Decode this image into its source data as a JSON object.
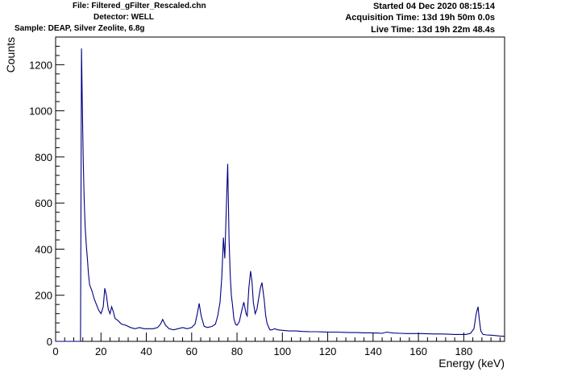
{
  "header": {
    "file": "File: Filtered_gFilter_Rescaled.chn",
    "detector": "Detector: WELL",
    "sample": "Sample: DEAP, Silver Zeolite, 6.8g",
    "started": "Started 04 Dec 2020 08:15:14",
    "acquisition": "Acquisition Time: 13d 19h 50m 0.0s",
    "live": "Live Time: 13d 19h 22m 48.4s"
  },
  "colors": {
    "line": "#000080",
    "axis": "#000000"
  },
  "chart_data": {
    "type": "line",
    "title": "",
    "xlabel": "Energy (keV)",
    "ylabel": "Counts",
    "xlim": [
      0,
      198
    ],
    "ylim": [
      0,
      1320
    ],
    "xticks": [
      0,
      20,
      40,
      60,
      80,
      100,
      120,
      140,
      160,
      180
    ],
    "xtick_labels": [
      "0",
      "20",
      "40",
      "60",
      "80",
      "100",
      "120",
      "140",
      "160",
      "180"
    ],
    "yticks": [
      0,
      200,
      400,
      600,
      800,
      1000,
      1200
    ],
    "ytick_labels": [
      "0",
      "200",
      "400",
      "600",
      "800",
      "1000",
      "1200"
    ],
    "grid": false,
    "legend": "none",
    "series": [
      {
        "x": [
          0,
          11.0,
          11.4,
          11.8,
          12.2,
          12.6,
          13.0,
          13.5,
          14.0,
          14.5,
          15.0,
          16.0,
          17.0,
          18.0,
          19.0,
          20.0,
          21.0,
          21.7,
          22.4,
          23.2,
          24.0,
          24.7,
          25.4,
          26.2,
          27.5,
          29.0,
          31.0,
          33.0,
          35.0,
          37.0,
          39.0,
          41.0,
          43.0,
          45.0,
          46.3,
          47.2,
          48.5,
          50.0,
          52.0,
          54.0,
          56.0,
          58.0,
          60.0,
          61.5,
          62.5,
          63.3,
          64.2,
          65.5,
          67.0,
          69.0,
          70.5,
          71.5,
          72.5,
          73.3,
          74.0,
          74.6,
          75.3,
          75.9,
          76.5,
          77.0,
          77.5,
          78.0,
          78.6,
          79.3,
          80.0,
          81.0,
          82.0,
          83.0,
          84.0,
          84.5,
          85.2,
          86.0,
          86.6,
          87.2,
          88.0,
          88.8,
          89.6,
          90.3,
          91.0,
          92.0,
          92.6,
          93.2,
          93.8,
          94.5,
          95.5,
          96.5,
          98.0,
          100.0,
          103.0,
          106.0,
          109.0,
          112.0,
          115.0,
          118.0,
          121.0,
          124.0,
          127.0,
          130.0,
          133.0,
          136.0,
          139.0,
          142.0,
          144.0,
          146.0,
          149.0,
          152.0,
          155.0,
          158.0,
          161.0,
          164.0,
          167.0,
          170.0,
          173.0,
          176.0,
          179.0,
          181.0,
          183.0,
          184.5,
          185.5,
          186.3,
          186.8,
          187.5,
          188.5,
          190.0,
          192.0,
          194.0,
          196.0,
          198.0
        ],
        "values": [
          0,
          0,
          1270,
          1010,
          780,
          620,
          500,
          420,
          360,
          290,
          245,
          220,
          185,
          160,
          135,
          120,
          150,
          230,
          200,
          140,
          120,
          150,
          130,
          100,
          90,
          75,
          70,
          60,
          55,
          60,
          55,
          55,
          55,
          60,
          75,
          95,
          70,
          55,
          50,
          55,
          60,
          55,
          60,
          75,
          120,
          165,
          110,
          65,
          60,
          65,
          75,
          110,
          170,
          280,
          450,
          360,
          580,
          770,
          440,
          290,
          200,
          160,
          100,
          75,
          70,
          85,
          130,
          170,
          120,
          110,
          230,
          305,
          260,
          170,
          120,
          140,
          190,
          230,
          255,
          180,
          115,
          80,
          65,
          50,
          50,
          55,
          50,
          48,
          45,
          45,
          43,
          42,
          42,
          41,
          40,
          40,
          39,
          38,
          38,
          37,
          37,
          36,
          35,
          40,
          36,
          35,
          34,
          34,
          34,
          33,
          32,
          32,
          31,
          30,
          30,
          30,
          35,
          55,
          120,
          150,
          100,
          45,
          30,
          28,
          27,
          25,
          23,
          22
        ]
      }
    ]
  }
}
